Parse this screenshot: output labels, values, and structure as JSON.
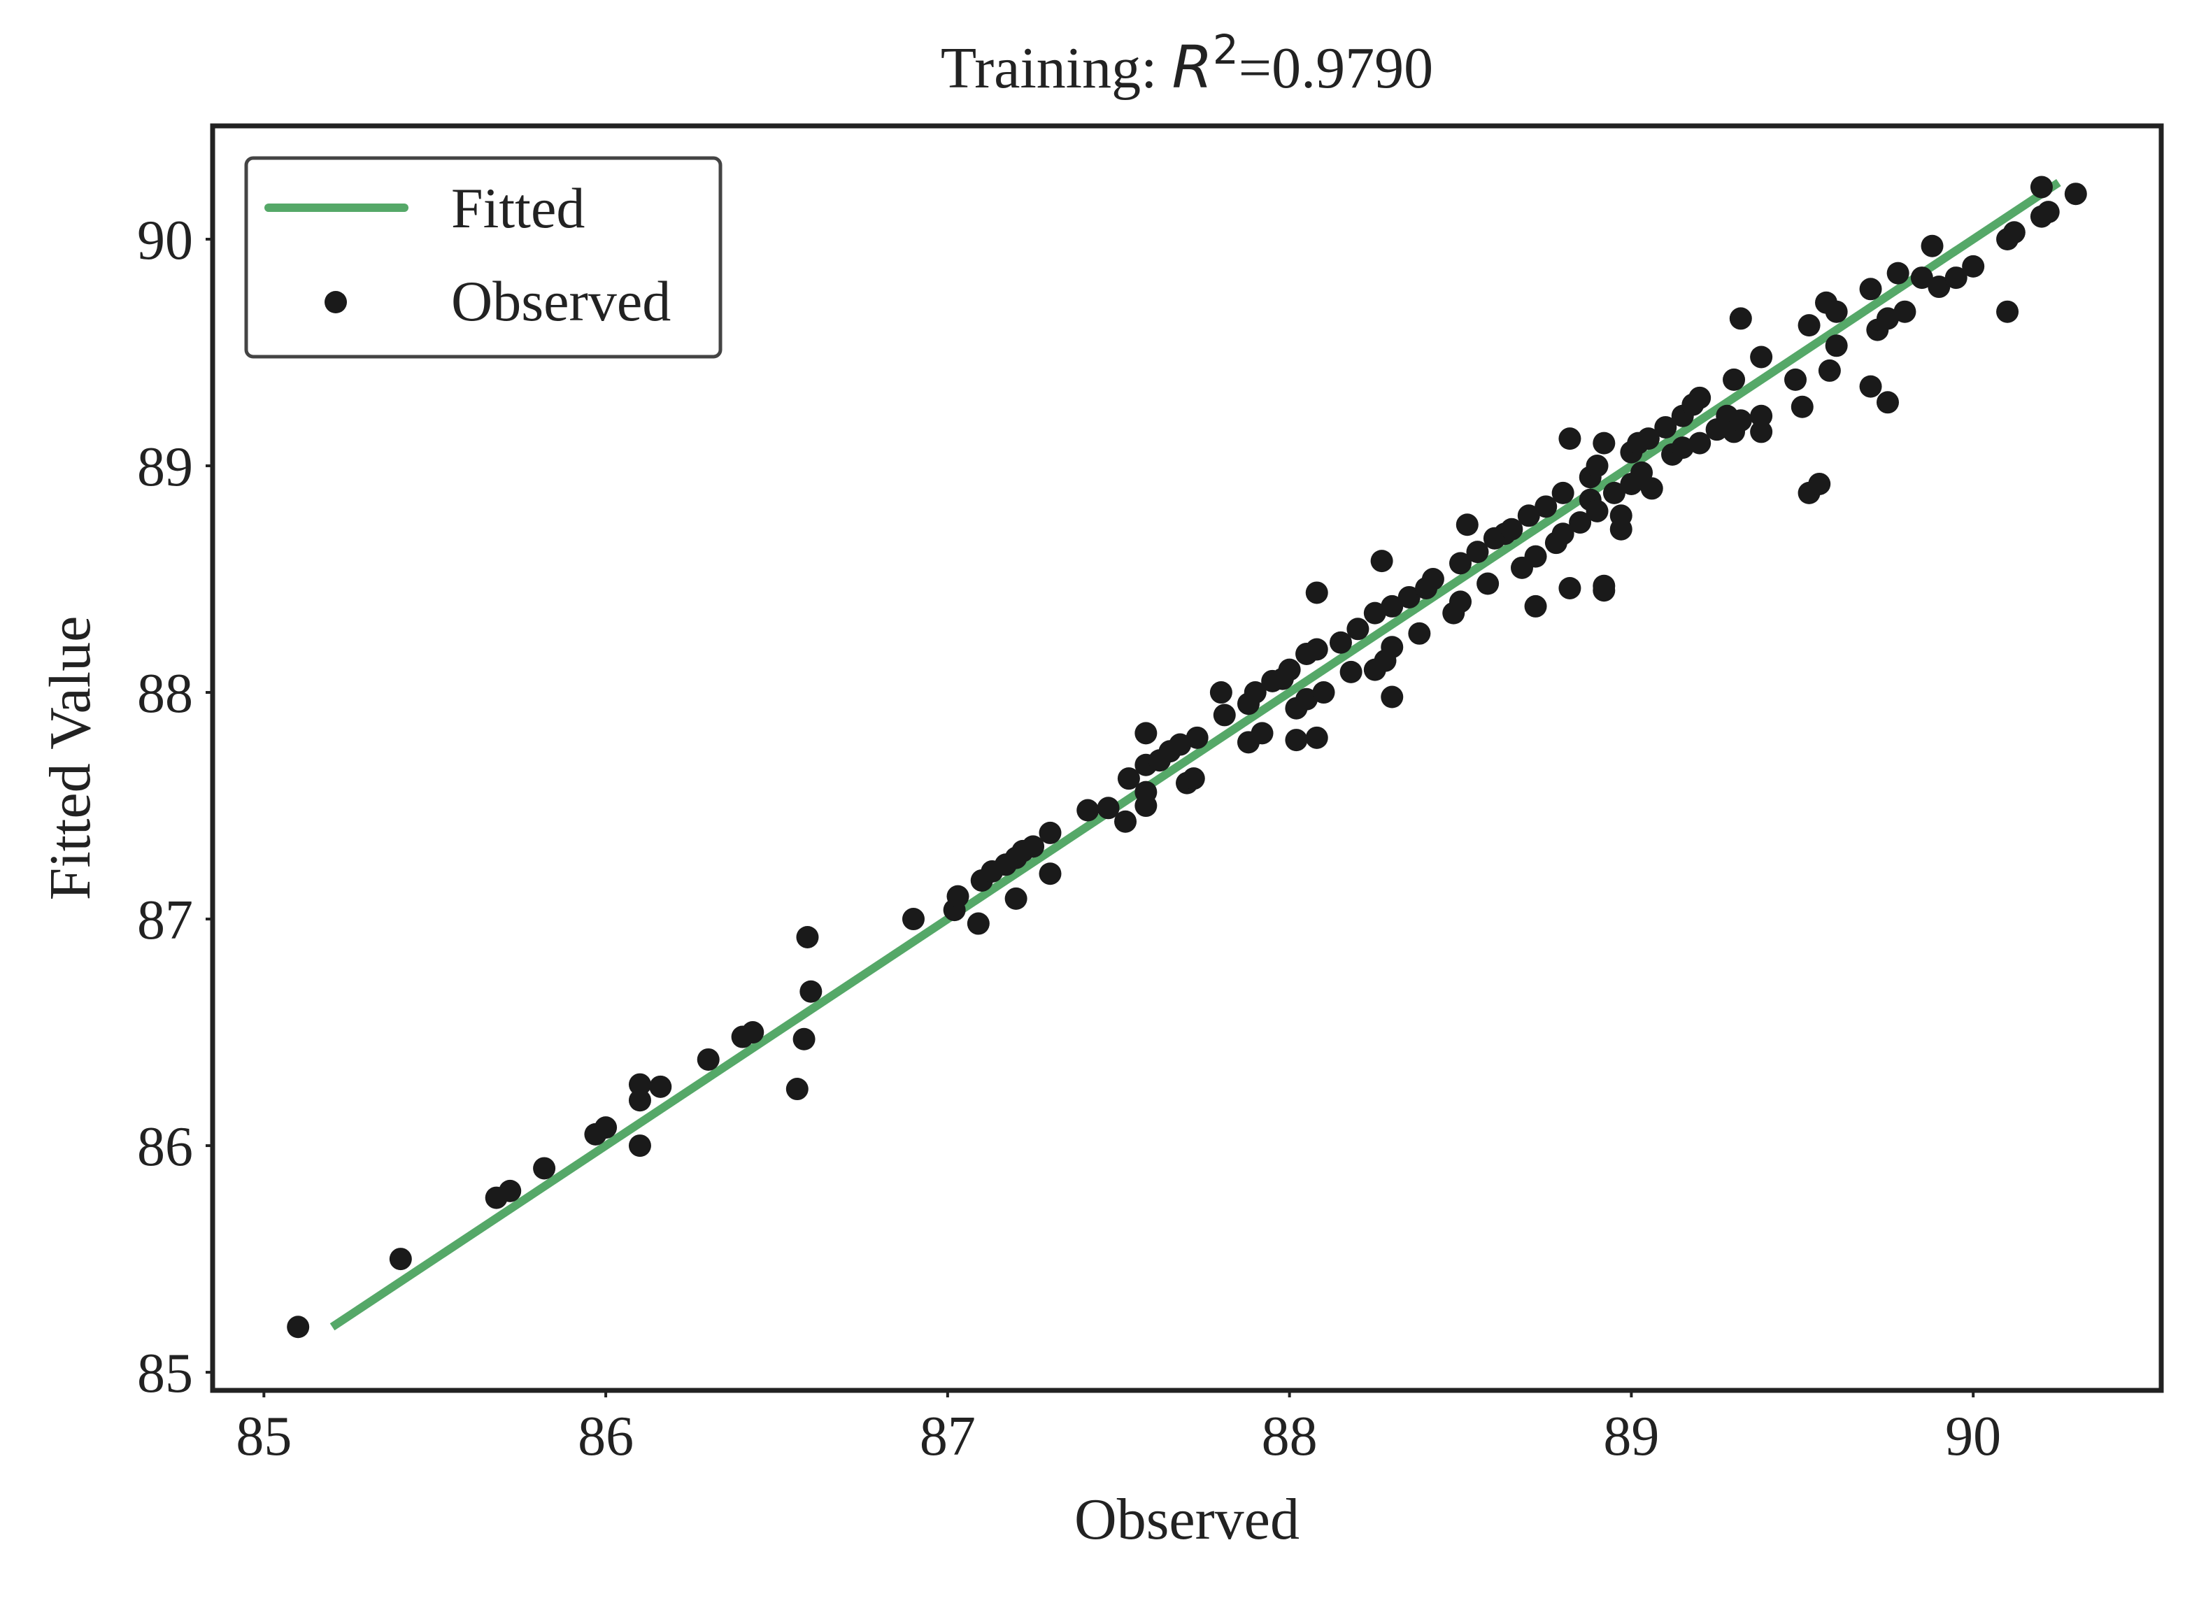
{
  "chart_data": {
    "type": "scatter",
    "title_prefix": "Training:  ",
    "title_r": "R",
    "title_exp": "2",
    "title_suffix": "=0.9790",
    "xlabel": "Observed",
    "ylabel": "Fitted Value",
    "xlim": [
      84.85,
      90.55
    ],
    "ylim": [
      84.92,
      90.5
    ],
    "xticks": [
      85,
      86,
      87,
      88,
      89,
      90
    ],
    "yticks": [
      85,
      86,
      87,
      88,
      89,
      90
    ],
    "grid": false,
    "legend_position": "top-left",
    "colors": {
      "fitted": "#55a868",
      "observed": "#1a1a1a",
      "axes": "#222222"
    },
    "series": [
      {
        "name": "Fitted",
        "kind": "line",
        "x": [
          85.2,
          90.25
        ],
        "y": [
          85.2,
          90.25
        ]
      },
      {
        "name": "Observed",
        "kind": "scatter",
        "points": [
          [
            85.1,
            85.2
          ],
          [
            85.4,
            85.5
          ],
          [
            85.68,
            85.77
          ],
          [
            85.72,
            85.8
          ],
          [
            85.82,
            85.9
          ],
          [
            85.97,
            86.05
          ],
          [
            86.0,
            86.08
          ],
          [
            86.1,
            86.0
          ],
          [
            86.1,
            86.2
          ],
          [
            86.1,
            86.27
          ],
          [
            86.16,
            86.26
          ],
          [
            86.3,
            86.38
          ],
          [
            86.4,
            86.48
          ],
          [
            86.43,
            86.5
          ],
          [
            86.56,
            86.25
          ],
          [
            86.58,
            86.47
          ],
          [
            86.6,
            86.68
          ],
          [
            86.59,
            86.92
          ],
          [
            86.9,
            87.0
          ],
          [
            87.02,
            87.04
          ],
          [
            87.03,
            87.1
          ],
          [
            87.09,
            86.98
          ],
          [
            87.1,
            87.17
          ],
          [
            87.13,
            87.21
          ],
          [
            87.17,
            87.24
          ],
          [
            87.2,
            87.27
          ],
          [
            87.2,
            87.09
          ],
          [
            87.22,
            87.3
          ],
          [
            87.25,
            87.32
          ],
          [
            87.3,
            87.38
          ],
          [
            87.3,
            87.2
          ],
          [
            87.41,
            87.48
          ],
          [
            87.47,
            87.49
          ],
          [
            87.52,
            87.43
          ],
          [
            87.53,
            87.62
          ],
          [
            87.58,
            87.5
          ],
          [
            87.58,
            87.56
          ],
          [
            87.58,
            87.68
          ],
          [
            87.58,
            87.82
          ],
          [
            87.62,
            87.7
          ],
          [
            87.65,
            87.74
          ],
          [
            87.68,
            87.77
          ],
          [
            87.7,
            87.6
          ],
          [
            87.72,
            87.62
          ],
          [
            87.73,
            87.8
          ],
          [
            87.8,
            88.0
          ],
          [
            87.81,
            87.9
          ],
          [
            87.88,
            87.95
          ],
          [
            87.88,
            87.78
          ],
          [
            87.9,
            88.0
          ],
          [
            87.92,
            87.82
          ],
          [
            87.95,
            88.05
          ],
          [
            87.98,
            88.06
          ],
          [
            88.0,
            88.1
          ],
          [
            88.02,
            87.93
          ],
          [
            88.02,
            87.79
          ],
          [
            88.05,
            88.17
          ],
          [
            88.05,
            87.97
          ],
          [
            88.08,
            88.19
          ],
          [
            88.08,
            87.8
          ],
          [
            88.1,
            88.0
          ],
          [
            88.08,
            88.44
          ],
          [
            88.15,
            88.22
          ],
          [
            88.18,
            88.09
          ],
          [
            88.2,
            88.28
          ],
          [
            88.25,
            88.1
          ],
          [
            88.25,
            88.35
          ],
          [
            88.27,
            88.58
          ],
          [
            88.28,
            88.14
          ],
          [
            88.3,
            88.2
          ],
          [
            88.3,
            88.38
          ],
          [
            88.3,
            87.98
          ],
          [
            88.35,
            88.42
          ],
          [
            88.38,
            88.26
          ],
          [
            88.4,
            88.46
          ],
          [
            88.42,
            88.5
          ],
          [
            88.48,
            88.35
          ],
          [
            88.5,
            88.4
          ],
          [
            88.5,
            88.57
          ],
          [
            88.52,
            88.74
          ],
          [
            88.55,
            88.62
          ],
          [
            88.58,
            88.48
          ],
          [
            88.6,
            88.68
          ],
          [
            88.63,
            88.7
          ],
          [
            88.65,
            88.72
          ],
          [
            88.68,
            88.55
          ],
          [
            88.7,
            88.78
          ],
          [
            88.72,
            88.6
          ],
          [
            88.72,
            88.38
          ],
          [
            88.75,
            88.82
          ],
          [
            88.78,
            88.66
          ],
          [
            88.8,
            88.88
          ],
          [
            88.8,
            88.7
          ],
          [
            88.82,
            88.46
          ],
          [
            88.82,
            89.12
          ],
          [
            88.85,
            88.75
          ],
          [
            88.88,
            88.95
          ],
          [
            88.88,
            88.85
          ],
          [
            88.9,
            89.0
          ],
          [
            88.9,
            88.8
          ],
          [
            88.92,
            88.47
          ],
          [
            88.92,
            88.45
          ],
          [
            88.92,
            89.1
          ],
          [
            88.95,
            88.88
          ],
          [
            88.97,
            88.72
          ],
          [
            88.97,
            88.78
          ],
          [
            89.0,
            89.06
          ],
          [
            89.0,
            88.92
          ],
          [
            89.02,
            89.1
          ],
          [
            89.03,
            88.97
          ],
          [
            89.05,
            89.12
          ],
          [
            89.06,
            88.9
          ],
          [
            89.1,
            89.17
          ],
          [
            89.12,
            89.05
          ],
          [
            89.15,
            89.22
          ],
          [
            89.15,
            89.08
          ],
          [
            89.18,
            89.27
          ],
          [
            89.2,
            89.1
          ],
          [
            89.2,
            89.3
          ],
          [
            89.25,
            89.16
          ],
          [
            89.28,
            89.22
          ],
          [
            89.3,
            89.38
          ],
          [
            89.3,
            89.15
          ],
          [
            89.32,
            89.65
          ],
          [
            89.32,
            89.2
          ],
          [
            89.38,
            89.48
          ],
          [
            89.38,
            89.15
          ],
          [
            89.38,
            89.22
          ],
          [
            89.48,
            89.38
          ],
          [
            89.5,
            89.26
          ],
          [
            89.52,
            88.88
          ],
          [
            89.52,
            89.62
          ],
          [
            89.55,
            88.92
          ],
          [
            89.57,
            89.72
          ],
          [
            89.58,
            89.42
          ],
          [
            89.6,
            89.68
          ],
          [
            89.6,
            89.53
          ],
          [
            89.7,
            89.78
          ],
          [
            89.7,
            89.35
          ],
          [
            89.72,
            89.6
          ],
          [
            89.75,
            89.65
          ],
          [
            89.75,
            89.28
          ],
          [
            89.78,
            89.85
          ],
          [
            89.8,
            89.68
          ],
          [
            89.85,
            89.83
          ],
          [
            89.88,
            89.97
          ],
          [
            89.9,
            89.79
          ],
          [
            89.95,
            89.83
          ],
          [
            90.0,
            89.88
          ],
          [
            90.1,
            90.0
          ],
          [
            90.1,
            89.68
          ],
          [
            90.12,
            90.03
          ],
          [
            90.2,
            90.23
          ],
          [
            90.2,
            90.1
          ],
          [
            90.22,
            90.12
          ],
          [
            90.3,
            90.2
          ]
        ]
      }
    ]
  }
}
